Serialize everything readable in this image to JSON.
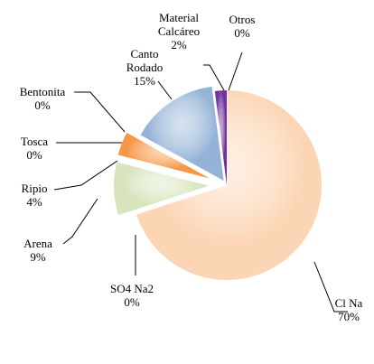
{
  "chart_data": {
    "type": "pie",
    "categories": [
      "Cl Na",
      "SO4 Na2",
      "Arena",
      "Ripio",
      "Tosca",
      "Bentonita",
      "Canto Rodado",
      "Material Calcáreo",
      "Otros"
    ],
    "values": [
      70,
      0,
      9,
      4,
      0,
      0,
      15,
      2,
      0
    ],
    "value_labels": [
      "70%",
      "0%",
      "9%",
      "4%",
      "0%",
      "0%",
      "15%",
      "2%",
      "0%"
    ],
    "colors": [
      "#fcd5b5",
      "#b3a2c7",
      "#d7e4bd",
      "#f79646",
      "#c0504d",
      "#4bacc6",
      "#95b3d7",
      "#7030a0",
      "#8064a2"
    ]
  }
}
